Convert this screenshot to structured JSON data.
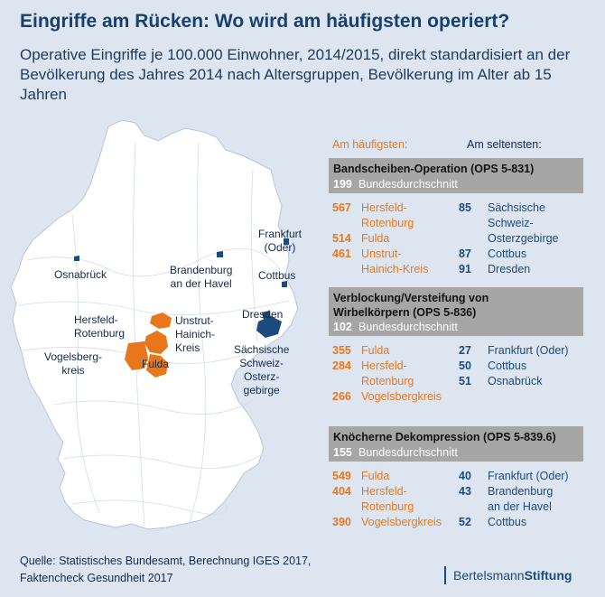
{
  "title": "Eingriffe am Rücken: Wo wird am häufigsten operiert?",
  "subtitle": "Operative Eingriffe je 100.000 Einwohner, 2014/2015, direkt standardisiert an der Bevölkerung des Jahres 2014 nach Altersgruppen, Bevölkerung im Alter ab 15 Jahren",
  "column_headers": {
    "most": "Am häufigsten:",
    "least": "Am seltensten:"
  },
  "colors": {
    "most": "#e8771c",
    "least": "#1a4a7e",
    "header_bar": "#a6a6a6",
    "background": "#dde6f0",
    "map_fill": "#ffffff"
  },
  "map_labels": {
    "osnabrueck": "Osnabrück",
    "brandenburg": [
      "Brandenburg",
      "an der Havel"
    ],
    "frankfurt": [
      "Frankfurt",
      "(Oder)"
    ],
    "cottbus": "Cottbus",
    "dresden": "Dresden",
    "saechsische": [
      "Sächsische",
      "Schweiz-",
      "Osterz-",
      "gebirge"
    ],
    "hersfeld": [
      "Hersfeld-",
      "Rotenburg"
    ],
    "unstrut": [
      "Unstrut-",
      "Hainich-",
      "Kreis"
    ],
    "vogelsberg": [
      "Vogelsberg-",
      "kreis"
    ],
    "fulda": "Fulda"
  },
  "sections": [
    {
      "heading": [
        "Bandscheiben-Operation (OPS 5-831)"
      ],
      "average_value": "199",
      "average_label": "Bundesdurchschnitt",
      "most": [
        {
          "value": "567",
          "name": [
            "Hersfeld-",
            "Rotenburg"
          ]
        },
        {
          "value": "514",
          "name": [
            "Fulda"
          ]
        },
        {
          "value": "461",
          "name": [
            "Unstrut-",
            "Hainich-Kreis"
          ]
        }
      ],
      "least": [
        {
          "value": "85",
          "name": [
            "Sächsische",
            "Schweiz-",
            "Osterzgebirge"
          ]
        },
        {
          "value": "87",
          "name": [
            "Cottbus"
          ]
        },
        {
          "value": "91",
          "name": [
            "Dresden"
          ]
        }
      ]
    },
    {
      "heading": [
        "Verblockung/Versteifung von",
        "Wirbelkörpern (OPS 5-836)"
      ],
      "average_value": "102",
      "average_label": "Bundesdurchschnitt",
      "most": [
        {
          "value": "355",
          "name": [
            "Fulda"
          ]
        },
        {
          "value": "284",
          "name": [
            "Hersfeld-",
            "Rotenburg"
          ]
        },
        {
          "value": "266",
          "name": [
            "Vogelsbergkreis"
          ]
        }
      ],
      "least": [
        {
          "value": "27",
          "name": [
            "Frankfurt (Oder)"
          ]
        },
        {
          "value": "50",
          "name": [
            "Cottbus"
          ]
        },
        {
          "value": "51",
          "name": [
            "Osnabrück"
          ]
        }
      ]
    },
    {
      "heading": [
        "Knöcherne Dekompression (OPS 5-839.6)"
      ],
      "average_value": "155",
      "average_label": "Bundesdurchschnitt",
      "most": [
        {
          "value": "549",
          "name": [
            "Fulda"
          ]
        },
        {
          "value": "404",
          "name": [
            "Hersfeld-",
            "Rotenburg"
          ]
        },
        {
          "value": "390",
          "name": [
            "Vogelsbergkreis"
          ]
        }
      ],
      "least": [
        {
          "value": "40",
          "name": [
            "Frankfurt (Oder)"
          ]
        },
        {
          "value": "43",
          "name": [
            "Brandenburg",
            "an der Havel"
          ]
        },
        {
          "value": "52",
          "name": [
            "Cottbus"
          ]
        }
      ]
    }
  ],
  "footer": [
    "Quelle: Statistisches Bundesamt, Berechnung IGES 2017,",
    "Faktencheck Gesundheit 2017"
  ],
  "brand": {
    "part1": "Bertelsmann",
    "part2": "Stiftung"
  }
}
